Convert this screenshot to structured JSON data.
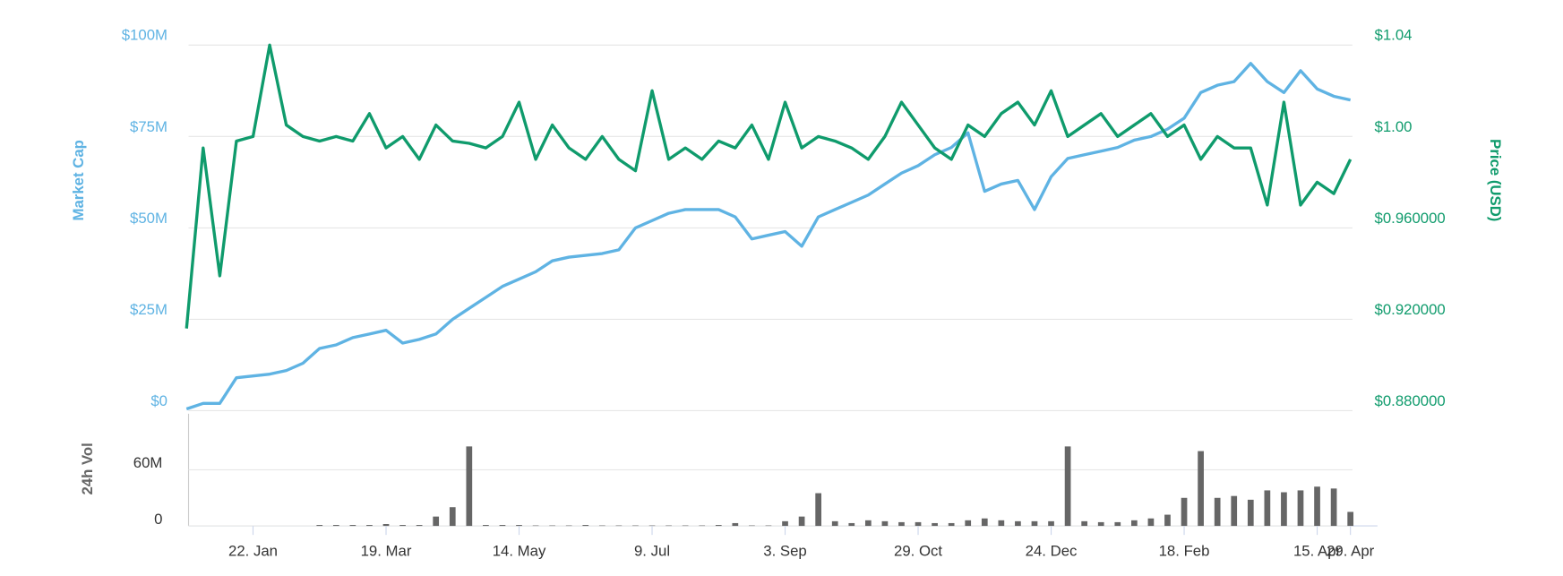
{
  "chart_data": [
    {
      "type": "line",
      "ylabel": "Market Cap",
      "y2label": "Price (USD)",
      "ylim": [
        0,
        100000000
      ],
      "yticks": [
        {
          "value": 0,
          "label": "$0"
        },
        {
          "value": 25000000,
          "label": "$25M"
        },
        {
          "value": 50000000,
          "label": "$50M"
        },
        {
          "value": 75000000,
          "label": "$75M"
        },
        {
          "value": 100000000,
          "label": "$100M"
        }
      ],
      "y2lim": [
        0.88,
        1.04
      ],
      "y2ticks": [
        {
          "value": 0.88,
          "label": "$0.880000"
        },
        {
          "value": 0.92,
          "label": "$0.920000"
        },
        {
          "value": 0.96,
          "label": "$0.960000"
        },
        {
          "value": 1.0,
          "label": "$1.00"
        },
        {
          "value": 1.04,
          "label": "$1.04"
        }
      ],
      "grid": true,
      "series": [
        {
          "name": "Market Cap",
          "color": "#5fb3e3",
          "axis": "y",
          "values": [
            500000,
            2000000,
            2000000,
            9000000,
            9500000,
            10000000,
            11000000,
            13000000,
            17000000,
            18000000,
            20000000,
            21000000,
            22000000,
            18500000,
            19500000,
            21000000,
            25000000,
            28000000,
            31000000,
            34000000,
            36000000,
            38000000,
            41000000,
            42000000,
            42500000,
            43000000,
            44000000,
            50000000,
            52000000,
            54000000,
            55000000,
            55000000,
            55000000,
            53000000,
            47000000,
            48000000,
            49000000,
            45000000,
            53000000,
            55000000,
            57000000,
            59000000,
            62000000,
            65000000,
            67000000,
            70000000,
            72000000,
            76000000,
            60000000,
            62000000,
            63000000,
            55000000,
            64000000,
            69000000,
            70000000,
            71000000,
            72000000,
            74000000,
            75000000,
            77000000,
            80000000,
            87000000,
            89000000,
            90000000,
            95000000,
            90000000,
            87000000,
            93000000,
            88000000,
            86000000,
            85000000
          ]
        },
        {
          "name": "Price (USD)",
          "color": "#0f9b6c",
          "axis": "y2",
          "values": [
            0.916,
            0.995,
            0.939,
            0.998,
            1.0,
            1.04,
            1.005,
            1.0,
            0.998,
            1.0,
            0.998,
            1.01,
            0.995,
            1.0,
            0.99,
            1.005,
            0.998,
            0.997,
            0.995,
            1.0,
            1.015,
            0.99,
            1.005,
            0.995,
            0.99,
            1.0,
            0.99,
            0.985,
            1.02,
            0.99,
            0.995,
            0.99,
            0.998,
            0.995,
            1.005,
            0.99,
            1.015,
            0.995,
            1.0,
            0.998,
            0.995,
            0.99,
            1.0,
            1.015,
            1.005,
            0.995,
            0.99,
            1.005,
            1.0,
            1.01,
            1.015,
            1.005,
            1.02,
            1.0,
            1.005,
            1.01,
            1.0,
            1.005,
            1.01,
            1.0,
            1.005,
            0.99,
            1.0,
            0.995,
            0.995,
            0.97,
            1.015,
            0.97,
            0.98,
            0.975,
            0.99
          ]
        }
      ]
    },
    {
      "type": "bar",
      "ylabel": "24h Vol",
      "categories": [
        null,
        null,
        null,
        null,
        "22. Jan",
        null,
        null,
        null,
        null,
        null,
        null,
        null,
        "19. Mar",
        null,
        null,
        null,
        null,
        null,
        null,
        null,
        "14. May",
        null,
        null,
        null,
        null,
        null,
        null,
        null,
        "9. Jul",
        null,
        null,
        null,
        null,
        null,
        null,
        null,
        "3. Sep",
        null,
        null,
        null,
        null,
        null,
        null,
        null,
        "29. Oct",
        null,
        null,
        null,
        null,
        null,
        null,
        null,
        "24. Dec",
        null,
        null,
        null,
        null,
        null,
        null,
        null,
        "18. Feb",
        null,
        null,
        null,
        null,
        null,
        null,
        null,
        "15. Apr",
        null,
        "29. Apr"
      ],
      "ylim": [
        0,
        120000000
      ],
      "yticks": [
        0,
        {
          "value": 60000000,
          "label": "60M"
        }
      ],
      "grid": true,
      "color": "#666666",
      "values": [
        0,
        0,
        0,
        0,
        0,
        0,
        0,
        0,
        1000000,
        1000000,
        1000000,
        1000000,
        2000000,
        1000000,
        1000000,
        10000000,
        20000000,
        85000000,
        1000000,
        1000000,
        1000000,
        500000,
        500000,
        500000,
        1000000,
        500000,
        500000,
        500000,
        500000,
        500000,
        500000,
        500000,
        1000000,
        3000000,
        500000,
        500000,
        5000000,
        10000000,
        35000000,
        5000000,
        3000000,
        6000000,
        5000000,
        4000000,
        4000000,
        3000000,
        3000000,
        6000000,
        8000000,
        6000000,
        5000000,
        5000000,
        5000000,
        85000000,
        5000000,
        4000000,
        4000000,
        6000000,
        8000000,
        12000000,
        30000000,
        80000000,
        30000000,
        32000000,
        28000000,
        38000000,
        36000000,
        38000000,
        42000000,
        40000000,
        15000000
      ]
    }
  ]
}
